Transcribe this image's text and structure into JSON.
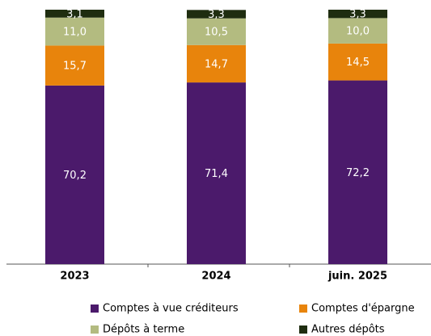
{
  "chart_data": {
    "type": "stacked_bar",
    "categories": [
      "2023",
      "2024",
      "juin. 2025"
    ],
    "ylim": [
      0,
      100
    ],
    "series": [
      {
        "name": "Comptes à vue créditeurs",
        "color": "#4b1a6b",
        "values": [
          70.2,
          71.4,
          72.2
        ],
        "value_labels": [
          "70,2",
          "71,4",
          "72,2"
        ]
      },
      {
        "name": "Comptes d'épargne",
        "color": "#e8840c",
        "values": [
          15.7,
          14.7,
          14.5
        ],
        "value_labels": [
          "15,7",
          "14,7",
          "14,5"
        ]
      },
      {
        "name": "Dépôts à terme",
        "color": "#b3bb80",
        "values": [
          11.0,
          10.5,
          10.0
        ],
        "value_labels": [
          "11,0",
          "10,5",
          "10,0"
        ]
      },
      {
        "name": "Autres dépôts",
        "color": "#1f2d10",
        "values": [
          3.1,
          3.3,
          3.3
        ],
        "value_labels": [
          "3,1",
          "3,3",
          "3,3"
        ]
      }
    ]
  }
}
